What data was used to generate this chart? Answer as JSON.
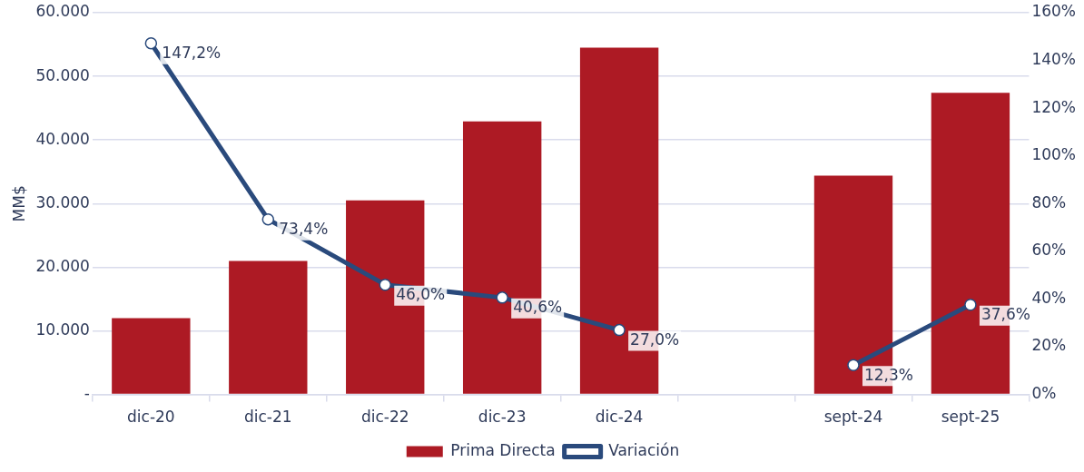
{
  "chart_data": {
    "type": "bar",
    "categories": [
      "dic-20",
      "dic-21",
      "dic-22",
      "dic-23",
      "dic-24",
      null,
      "sept-24",
      "sept-25"
    ],
    "ylabel": "MM$",
    "ylim": [
      0,
      60000
    ],
    "yticks": [
      {
        "value": 0,
        "label": "-"
      },
      {
        "value": 10000,
        "label": "10.000"
      },
      {
        "value": 20000,
        "label": "20.000"
      },
      {
        "value": 30000,
        "label": "30.000"
      },
      {
        "value": 40000,
        "label": "40.000"
      },
      {
        "value": 50000,
        "label": "50.000"
      },
      {
        "value": 60000,
        "label": "60.000"
      }
    ],
    "y2lim": [
      0,
      160
    ],
    "y2ticks": [
      {
        "value": 0,
        "label": "0%"
      },
      {
        "value": 20,
        "label": "20%"
      },
      {
        "value": 40,
        "label": "40%"
      },
      {
        "value": 60,
        "label": "60%"
      },
      {
        "value": 80,
        "label": "80%"
      },
      {
        "value": 100,
        "label": "100%"
      },
      {
        "value": 120,
        "label": "120%"
      },
      {
        "value": 140,
        "label": "140%"
      },
      {
        "value": 160,
        "label": "160%"
      }
    ],
    "series": [
      {
        "name": "Prima Directa",
        "color": "#ad1a24",
        "values": [
          12000,
          21000,
          30500,
          42900,
          54500,
          null,
          34400,
          47400
        ]
      },
      {
        "name": "Variación",
        "type": "line",
        "axis": "y2",
        "color": "#2a4a7c",
        "marker": "circle",
        "values": [
          147.2,
          73.4,
          46.0,
          40.6,
          27.0,
          null,
          12.3,
          37.6
        ],
        "value_labels": [
          "147,2%",
          "73,4%",
          "46,0%",
          "40,6%",
          "27,0%",
          null,
          "12,3%",
          "37,6%"
        ]
      }
    ],
    "grid": "y",
    "legend": "bottom"
  }
}
